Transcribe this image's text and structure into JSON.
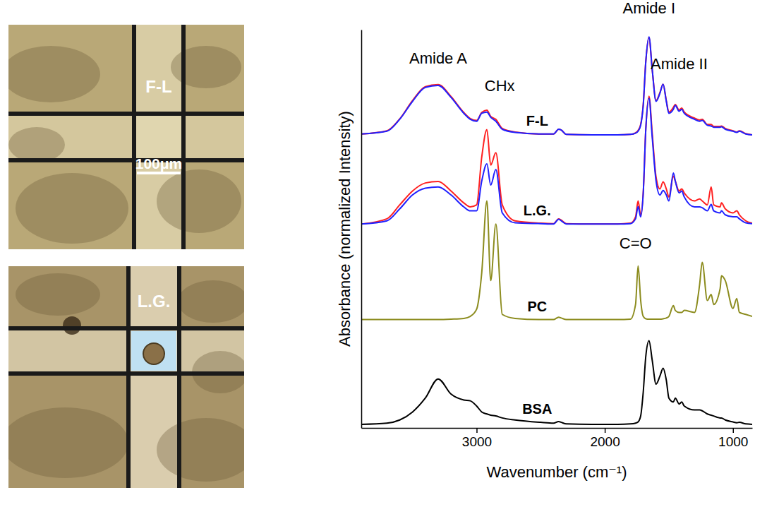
{
  "chart_data": {
    "type": "line",
    "x_label": "Wavenumber (cm⁻¹)",
    "y_label": "Absorbance (normalized Intensity)",
    "tick_labels": "x",
    "xlim": [
      3900,
      850
    ],
    "ylim": [
      0,
      10
    ],
    "xticks": [
      3000,
      2000,
      1000
    ],
    "x": [
      3900,
      3700,
      3600,
      3500,
      3400,
      3300,
      3200,
      3100,
      3050,
      3000,
      2960,
      2920,
      2890,
      2850,
      2800,
      2700,
      2500,
      2400,
      2360,
      2340,
      2300,
      2100,
      1900,
      1800,
      1760,
      1740,
      1720,
      1700,
      1680,
      1655,
      1630,
      1600,
      1570,
      1545,
      1520,
      1500,
      1465,
      1450,
      1420,
      1400,
      1380,
      1300,
      1260,
      1240,
      1200,
      1170,
      1150,
      1100,
      1090,
      1060,
      1000,
      970,
      950,
      900,
      850
    ],
    "series": [
      {
        "color": "#ff2020",
        "values": [
          7.38,
          7.46,
          7.76,
          8.22,
          8.57,
          8.62,
          8.32,
          7.92,
          7.77,
          7.72,
          7.92,
          7.98,
          7.82,
          7.75,
          7.52,
          7.43,
          7.38,
          7.38,
          7.5,
          7.48,
          7.37,
          7.36,
          7.36,
          7.37,
          7.41,
          7.47,
          7.62,
          8.12,
          9.2,
          9.8,
          9.0,
          8.22,
          8.42,
          8.63,
          8.22,
          7.93,
          8.05,
          8.12,
          7.98,
          8.03,
          7.93,
          7.78,
          7.73,
          7.75,
          7.62,
          7.62,
          7.57,
          7.57,
          7.58,
          7.52,
          7.46,
          7.43,
          7.46,
          7.39,
          7.36
        ]
      },
      {
        "name": "F-L",
        "color": "#2020ff",
        "values": [
          7.38,
          7.45,
          7.75,
          8.2,
          8.55,
          8.6,
          8.3,
          7.9,
          7.75,
          7.7,
          7.9,
          7.93,
          7.8,
          7.7,
          7.5,
          7.42,
          7.38,
          7.38,
          7.5,
          7.48,
          7.37,
          7.36,
          7.36,
          7.37,
          7.4,
          7.45,
          7.6,
          8.1,
          9.2,
          9.82,
          9.0,
          8.2,
          8.4,
          8.63,
          8.2,
          7.9,
          8.0,
          8.1,
          7.95,
          8.0,
          7.9,
          7.75,
          7.7,
          7.72,
          7.6,
          7.58,
          7.55,
          7.55,
          7.56,
          7.5,
          7.45,
          7.42,
          7.45,
          7.38,
          7.36
        ]
      },
      {
        "color": "#ff2020",
        "values": [
          5.12,
          5.25,
          5.6,
          5.95,
          6.15,
          6.19,
          5.95,
          5.65,
          5.55,
          5.6,
          6.8,
          7.49,
          6.6,
          6.91,
          5.6,
          5.2,
          5.14,
          5.13,
          5.25,
          5.22,
          5.13,
          5.12,
          5.12,
          5.14,
          5.3,
          5.7,
          5.35,
          5.9,
          7.5,
          8.33,
          7.4,
          6.3,
          6.0,
          6.18,
          6.0,
          5.8,
          6.32,
          6.2,
          5.95,
          6.0,
          5.9,
          5.7,
          5.75,
          5.7,
          5.6,
          6.05,
          5.6,
          5.55,
          5.65,
          5.5,
          5.4,
          5.45,
          5.35,
          5.2,
          5.14
        ]
      },
      {
        "name": "L.G.",
        "color": "#2020ff",
        "values": [
          5.12,
          5.2,
          5.5,
          5.85,
          6.02,
          6.05,
          5.85,
          5.55,
          5.45,
          5.45,
          6.2,
          6.63,
          6.1,
          6.49,
          5.4,
          5.15,
          5.13,
          5.12,
          5.24,
          5.2,
          5.12,
          5.12,
          5.12,
          5.13,
          5.25,
          5.56,
          5.3,
          5.9,
          7.5,
          8.28,
          7.3,
          6.2,
          5.85,
          5.96,
          5.85,
          5.7,
          6.4,
          6.2,
          5.9,
          5.95,
          5.8,
          5.55,
          5.55,
          5.53,
          5.45,
          5.61,
          5.45,
          5.4,
          5.45,
          5.35,
          5.3,
          5.3,
          5.25,
          5.15,
          5.13
        ]
      },
      {
        "name": "PC",
        "color": "#8c8c1e",
        "values": [
          2.72,
          2.72,
          2.72,
          2.72,
          2.72,
          2.72,
          2.73,
          2.75,
          2.8,
          2.98,
          3.9,
          5.7,
          3.7,
          5.12,
          2.85,
          2.75,
          2.72,
          2.72,
          2.78,
          2.76,
          2.72,
          2.72,
          2.72,
          2.73,
          3.1,
          4.07,
          3.2,
          2.8,
          2.74,
          2.73,
          2.73,
          2.73,
          2.73,
          2.74,
          2.76,
          2.8,
          3.07,
          2.95,
          2.9,
          2.9,
          2.95,
          2.9,
          3.6,
          4.16,
          3.2,
          3.35,
          3.1,
          3.5,
          3.82,
          3.7,
          3.0,
          3.25,
          2.9,
          2.85,
          2.8
        ]
      },
      {
        "name": "BSA",
        "color": "#000000",
        "values": [
          0.09,
          0.12,
          0.2,
          0.4,
          0.75,
          1.23,
          0.85,
          0.7,
          0.68,
          0.55,
          0.4,
          0.35,
          0.32,
          0.3,
          0.25,
          0.2,
          0.14,
          0.12,
          0.16,
          0.14,
          0.1,
          0.09,
          0.09,
          0.1,
          0.12,
          0.15,
          0.3,
          0.9,
          1.8,
          2.19,
          1.7,
          1.1,
          1.3,
          1.5,
          1.2,
          0.75,
          0.65,
          0.75,
          0.6,
          0.65,
          0.55,
          0.45,
          0.45,
          0.43,
          0.35,
          0.32,
          0.3,
          0.25,
          0.25,
          0.2,
          0.15,
          0.13,
          0.14,
          0.1,
          0.09
        ]
      }
    ],
    "annotations": [
      {
        "text": "Amide A",
        "x": 3300,
        "y": 9.15
      },
      {
        "text": "CHx",
        "x": 2820,
        "y": 8.45
      },
      {
        "text": "Amide I",
        "x": 1655,
        "y": 10.4
      },
      {
        "text": "Amide II",
        "x": 1420,
        "y": 9.0
      },
      {
        "text": "C=O",
        "x": 1760,
        "y": 4.5
      }
    ]
  },
  "micrographs": [
    {
      "label": "F-L",
      "scale_bar": "100μm"
    },
    {
      "label": "L.G."
    }
  ]
}
